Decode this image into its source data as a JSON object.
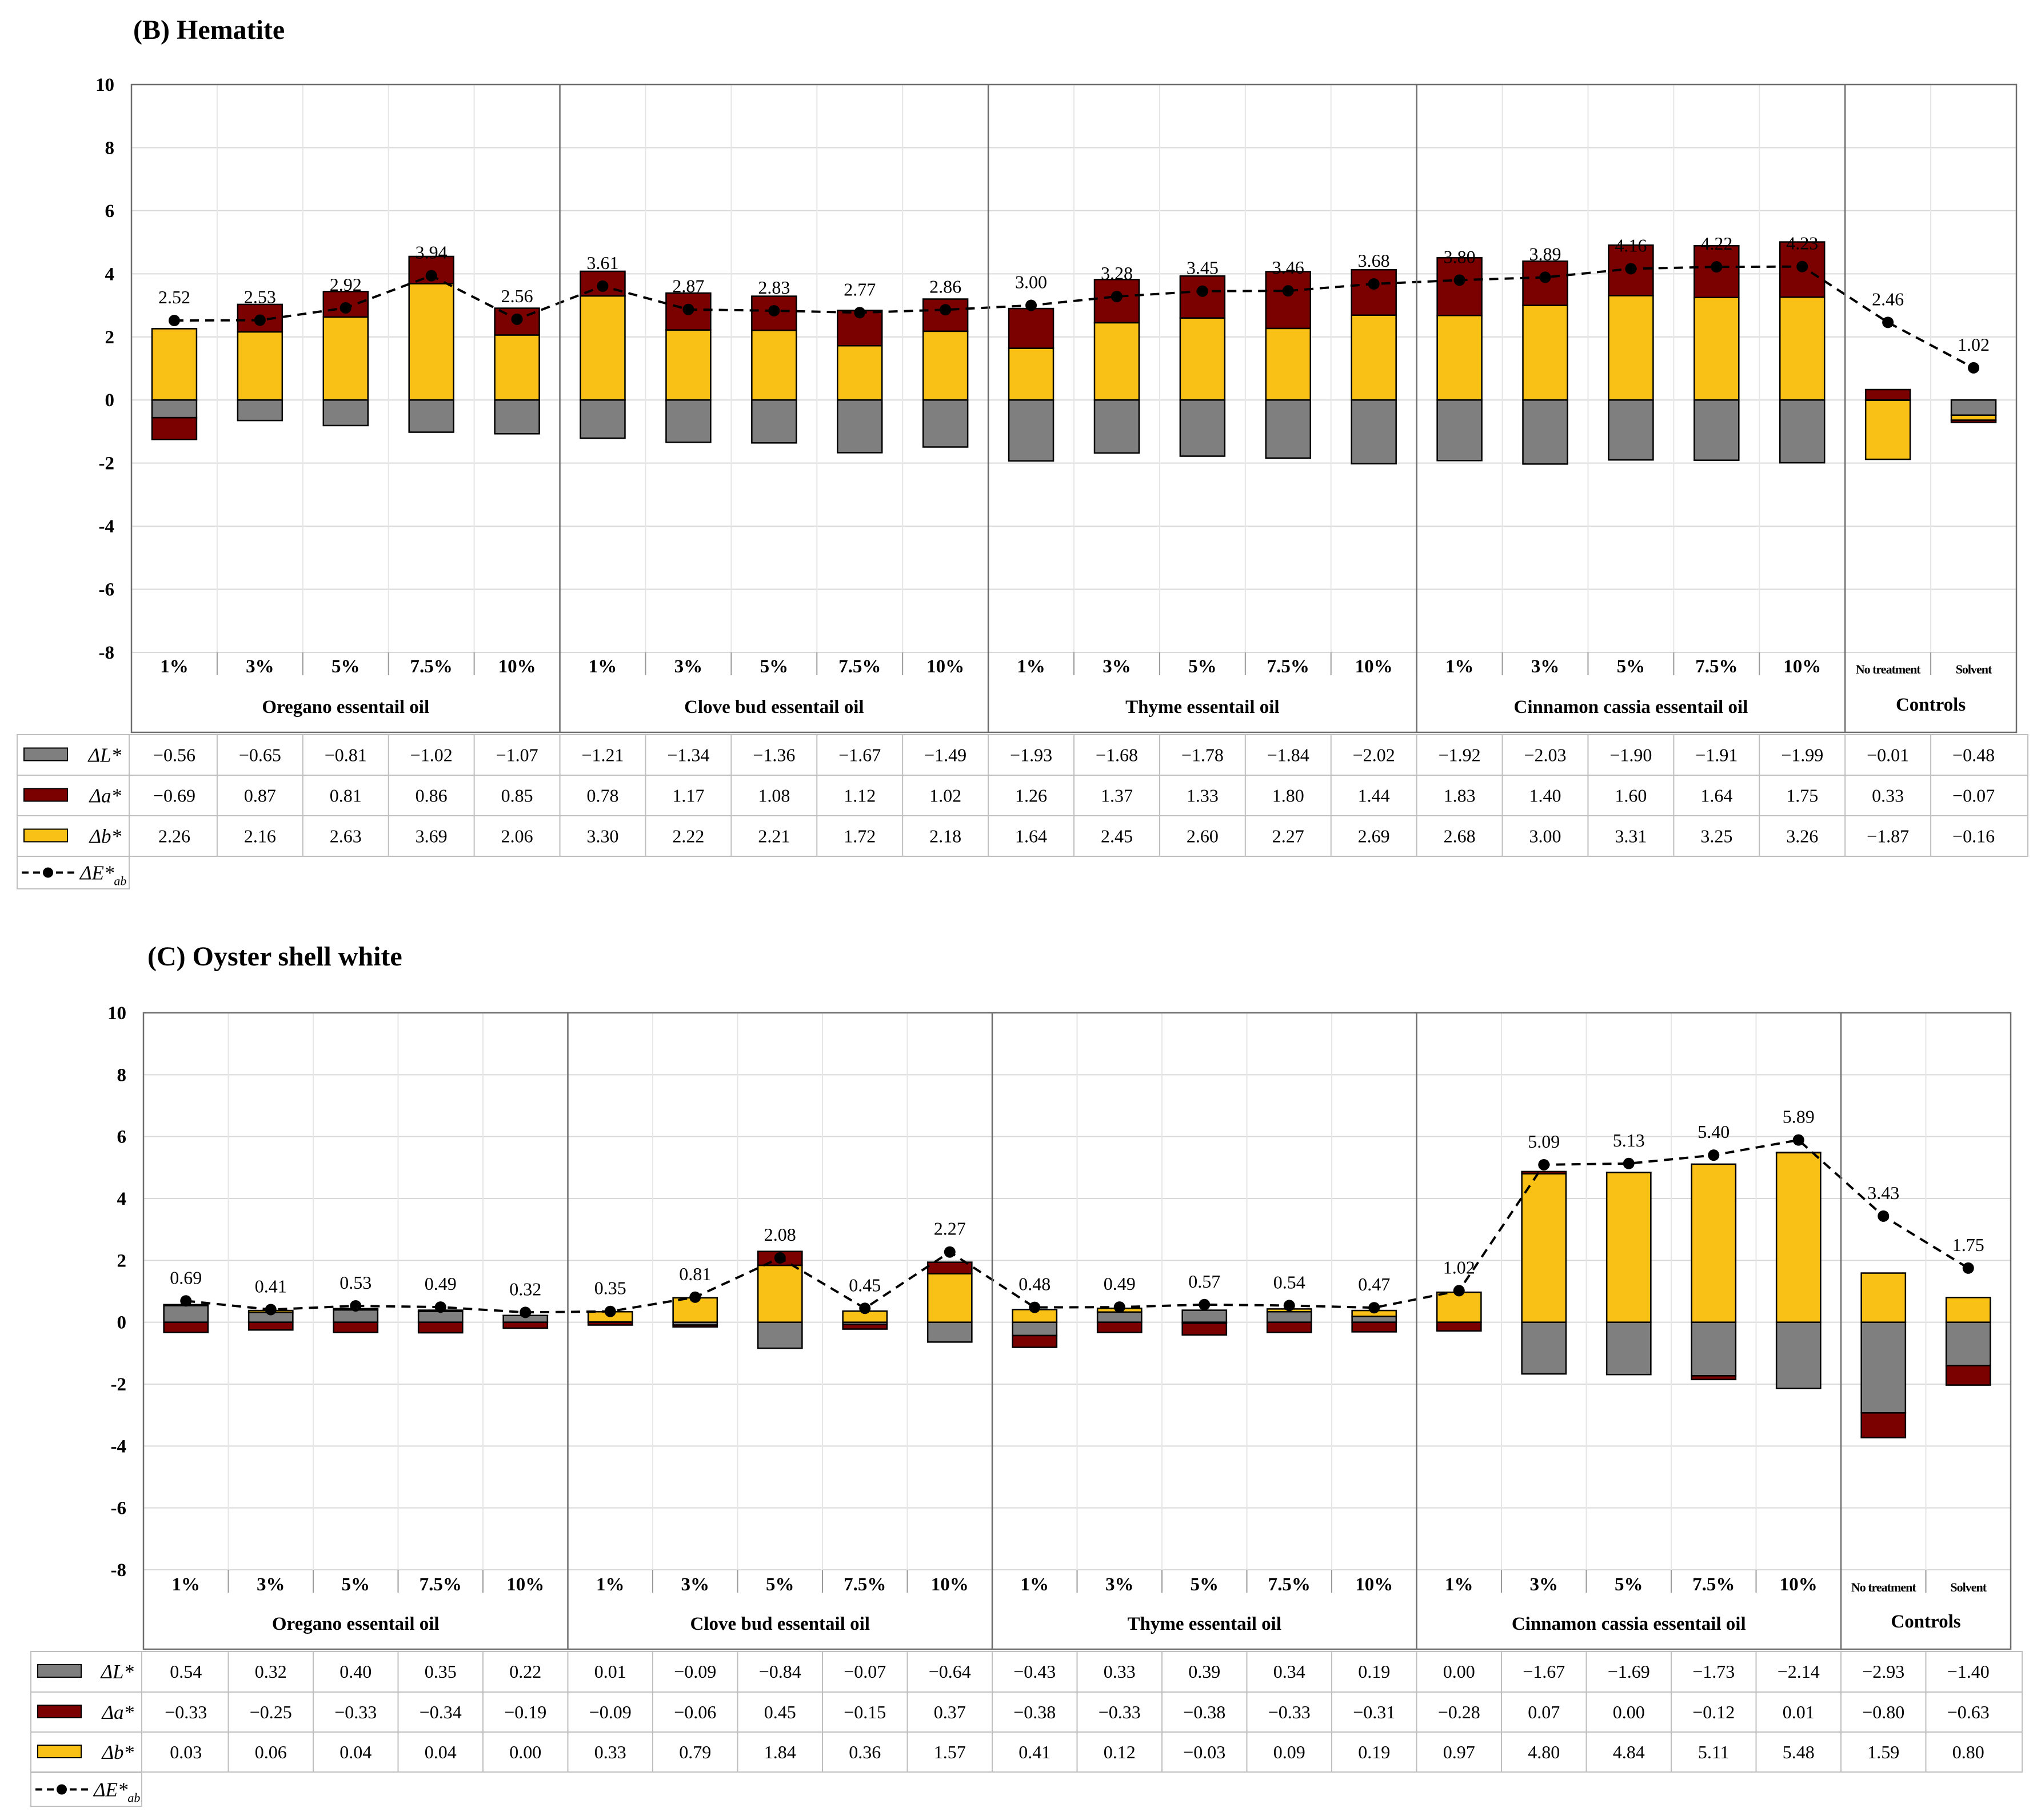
{
  "chart_data": [
    {
      "type": "bar",
      "stacked": true,
      "title": "(B) Hematite",
      "ylim": [
        -8,
        10
      ],
      "yticks": [
        "10",
        "8",
        "6",
        "4",
        "2",
        "0",
        "-2",
        "-4",
        "-6",
        "-8"
      ],
      "categories": [
        "1%",
        "3%",
        "5%",
        "7.5%",
        "10%",
        "1%",
        "3%",
        "5%",
        "7.5%",
        "10%",
        "1%",
        "3%",
        "5%",
        "7.5%",
        "10%",
        "1%",
        "3%",
        "5%",
        "7.5%",
        "10%",
        "No treatment",
        "Solvent"
      ],
      "groups": [
        "Oregano essentail oil",
        "Clove bud essentail oil",
        "Thyme essentail oil",
        "Cinnamon cassia essentail oil",
        "Controls"
      ],
      "series": [
        {
          "name": "ΔL*",
          "color": "#7f7f7f",
          "values": [
            -0.56,
            -0.65,
            -0.81,
            -1.02,
            -1.07,
            -1.21,
            -1.34,
            -1.36,
            -1.67,
            -1.49,
            -1.93,
            -1.68,
            -1.78,
            -1.84,
            -2.02,
            -1.92,
            -2.03,
            -1.9,
            -1.91,
            -1.99,
            -0.01,
            -0.48
          ],
          "labels": [
            "−0.56",
            "−0.65",
            "−0.81",
            "−1.02",
            "−1.07",
            "−1.21",
            "−1.34",
            "−1.36",
            "−1.67",
            "−1.49",
            "−1.93",
            "−1.68",
            "−1.78",
            "−1.84",
            "−2.02",
            "−1.92",
            "−2.03",
            "−1.90",
            "−1.91",
            "−1.99",
            "−0.01",
            "−0.48"
          ]
        },
        {
          "name": "Δa*",
          "color": "#7b0000",
          "values": [
            -0.69,
            0.87,
            0.81,
            0.86,
            0.85,
            0.78,
            1.17,
            1.08,
            1.12,
            1.02,
            1.26,
            1.37,
            1.33,
            1.8,
            1.44,
            1.83,
            1.4,
            1.6,
            1.64,
            1.75,
            0.33,
            -0.07
          ],
          "labels": [
            "−0.69",
            "0.87",
            "0.81",
            "0.86",
            "0.85",
            "0.78",
            "1.17",
            "1.08",
            "1.12",
            "1.02",
            "1.26",
            "1.37",
            "1.33",
            "1.80",
            "1.44",
            "1.83",
            "1.40",
            "1.60",
            "1.64",
            "1.75",
            "0.33",
            "−0.07"
          ]
        },
        {
          "name": "Δb*",
          "color": "#f9c116",
          "values": [
            2.26,
            2.16,
            2.63,
            3.69,
            2.06,
            3.3,
            2.22,
            2.21,
            1.72,
            2.18,
            1.64,
            2.45,
            2.6,
            2.27,
            2.69,
            2.68,
            3.0,
            3.31,
            3.25,
            3.26,
            -1.87,
            -0.16
          ],
          "labels": [
            "2.26",
            "2.16",
            "2.63",
            "3.69",
            "2.06",
            "3.30",
            "2.22",
            "2.21",
            "1.72",
            "2.18",
            "1.64",
            "2.45",
            "2.60",
            "2.27",
            "2.69",
            "2.68",
            "3.00",
            "3.31",
            "3.25",
            "3.26",
            "−1.87",
            "−0.16"
          ]
        },
        {
          "name": "ΔE*ab",
          "type": "line",
          "values": [
            2.52,
            2.53,
            2.92,
            3.94,
            2.56,
            3.61,
            2.87,
            2.83,
            2.77,
            2.86,
            3.0,
            3.28,
            3.45,
            3.46,
            3.68,
            3.8,
            3.89,
            4.16,
            4.22,
            4.23,
            2.46,
            1.02
          ],
          "labels": [
            "2.52",
            "2.53",
            "2.92",
            "3.94",
            "2.56",
            "3.61",
            "2.87",
            "2.83",
            "2.77",
            "2.86",
            "3.00",
            "3.28",
            "3.45",
            "3.46",
            "3.68",
            "3.80",
            "3.89",
            "4.16",
            "4.22",
            "4.23",
            "2.46",
            "1.02"
          ]
        }
      ]
    },
    {
      "type": "bar",
      "stacked": true,
      "title": "(C) Oyster shell white",
      "ylim": [
        -8,
        10
      ],
      "yticks": [
        "10",
        "8",
        "6",
        "4",
        "2",
        "0",
        "-2",
        "-4",
        "-6",
        "-8"
      ],
      "categories": [
        "1%",
        "3%",
        "5%",
        "7.5%",
        "10%",
        "1%",
        "3%",
        "5%",
        "7.5%",
        "10%",
        "1%",
        "3%",
        "5%",
        "7.5%",
        "10%",
        "1%",
        "3%",
        "5%",
        "7.5%",
        "10%",
        "No treatment",
        "Solvent"
      ],
      "groups": [
        "Oregano essentail oil",
        "Clove bud essentail oil",
        "Thyme essentail oil",
        "Cinnamon cassia essentail oil",
        "Controls"
      ],
      "series": [
        {
          "name": "ΔL*",
          "color": "#7f7f7f",
          "values": [
            0.54,
            0.32,
            0.4,
            0.35,
            0.22,
            0.01,
            -0.09,
            -0.84,
            -0.07,
            -0.64,
            -0.43,
            0.33,
            0.39,
            0.34,
            0.19,
            0.0,
            -1.67,
            -1.69,
            -1.73,
            -2.14,
            -2.93,
            -1.4
          ],
          "labels": [
            "0.54",
            "0.32",
            "0.40",
            "0.35",
            "0.22",
            "0.01",
            "−0.09",
            "−0.84",
            "−0.07",
            "−0.64",
            "−0.43",
            "0.33",
            "0.39",
            "0.34",
            "0.19",
            "0.00",
            "−1.67",
            "−1.69",
            "−1.73",
            "−2.14",
            "−2.93",
            "−1.40"
          ]
        },
        {
          "name": "Δa*",
          "color": "#7b0000",
          "values": [
            -0.33,
            -0.25,
            -0.33,
            -0.34,
            -0.19,
            -0.09,
            -0.06,
            0.45,
            -0.15,
            0.37,
            -0.38,
            -0.33,
            -0.38,
            -0.33,
            -0.31,
            -0.28,
            0.07,
            0.0,
            -0.12,
            0.01,
            -0.8,
            -0.63
          ],
          "labels": [
            "−0.33",
            "−0.25",
            "−0.33",
            "−0.34",
            "−0.19",
            "−0.09",
            "−0.06",
            "0.45",
            "−0.15",
            "0.37",
            "−0.38",
            "−0.33",
            "−0.38",
            "−0.33",
            "−0.31",
            "−0.28",
            "0.07",
            "0.00",
            "−0.12",
            "0.01",
            "−0.80",
            "−0.63"
          ]
        },
        {
          "name": "Δb*",
          "color": "#f9c116",
          "values": [
            0.03,
            0.06,
            0.04,
            0.04,
            0.0,
            0.33,
            0.79,
            1.84,
            0.36,
            1.57,
            0.41,
            0.12,
            -0.03,
            0.09,
            0.19,
            0.97,
            4.8,
            4.84,
            5.11,
            5.48,
            1.59,
            0.8
          ],
          "labels": [
            "0.03",
            "0.06",
            "0.04",
            "0.04",
            "0.00",
            "0.33",
            "0.79",
            "1.84",
            "0.36",
            "1.57",
            "0.41",
            "0.12",
            "−0.03",
            "0.09",
            "0.19",
            "0.97",
            "4.80",
            "4.84",
            "5.11",
            "5.48",
            "1.59",
            "0.80"
          ]
        },
        {
          "name": "ΔE*ab",
          "type": "line",
          "values": [
            0.69,
            0.41,
            0.53,
            0.49,
            0.32,
            0.35,
            0.81,
            2.08,
            0.45,
            2.27,
            0.48,
            0.49,
            0.57,
            0.54,
            0.47,
            1.02,
            5.09,
            5.13,
            5.4,
            5.89,
            3.43,
            1.75
          ],
          "labels": [
            "0.69",
            "0.41",
            "0.53",
            "0.49",
            "0.32",
            "0.35",
            "0.81",
            "2.08",
            "0.45",
            "2.27",
            "0.48",
            "0.49",
            "0.57",
            "0.54",
            "0.47",
            "1.02",
            "5.09",
            "5.13",
            "5.40",
            "5.89",
            "3.43",
            "1.75"
          ]
        }
      ]
    }
  ]
}
